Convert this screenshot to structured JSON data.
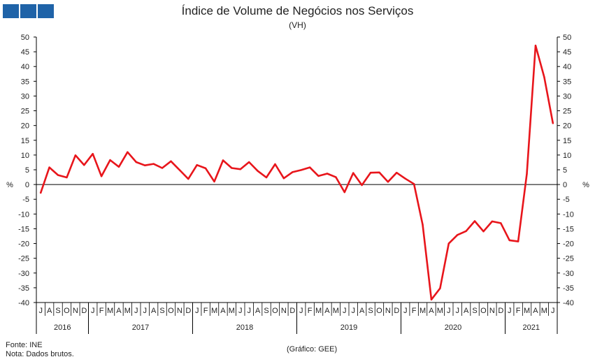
{
  "header": {
    "title": "Índice de Volume de Negócios nos Serviços",
    "subtitle": "(VH)"
  },
  "footer": {
    "source": "Fonte: INE",
    "note": "Nota: Dados brutos.",
    "credit": "(Gráfico: GEE)"
  },
  "colors": {
    "line": "#e8151b",
    "logo": "#1f63a8",
    "axis": "#000000"
  },
  "chart_data": {
    "type": "line",
    "title": "Índice de Volume de Negócios nos Serviços",
    "subtitle": "(VH)",
    "ylabel_left": "%",
    "ylabel_right": "%",
    "ylim": [
      -40,
      50
    ],
    "yticks": [
      50,
      45,
      40,
      35,
      30,
      25,
      20,
      15,
      10,
      5,
      0,
      -5,
      -10,
      -15,
      -20,
      -25,
      -30,
      -35,
      -40
    ],
    "grid": false,
    "x": [
      "2016-07",
      "2016-08",
      "2016-09",
      "2016-10",
      "2016-11",
      "2016-12",
      "2017-01",
      "2017-02",
      "2017-03",
      "2017-04",
      "2017-05",
      "2017-06",
      "2017-07",
      "2017-08",
      "2017-09",
      "2017-10",
      "2017-11",
      "2017-12",
      "2018-01",
      "2018-02",
      "2018-03",
      "2018-04",
      "2018-05",
      "2018-06",
      "2018-07",
      "2018-08",
      "2018-09",
      "2018-10",
      "2018-11",
      "2018-12",
      "2019-01",
      "2019-02",
      "2019-03",
      "2019-04",
      "2019-05",
      "2019-06",
      "2019-07",
      "2019-08",
      "2019-09",
      "2019-10",
      "2019-11",
      "2019-12",
      "2020-01",
      "2020-02",
      "2020-03",
      "2020-04",
      "2020-05",
      "2020-06",
      "2020-07",
      "2020-08",
      "2020-09",
      "2020-10",
      "2020-11",
      "2020-12",
      "2021-01",
      "2021-02",
      "2021-03",
      "2021-04",
      "2021-05",
      "2021-06"
    ],
    "month_labels": [
      "J",
      "A",
      "S",
      "O",
      "N",
      "D",
      "J",
      "F",
      "M",
      "A",
      "M",
      "J",
      "J",
      "A",
      "S",
      "O",
      "N",
      "D",
      "J",
      "F",
      "M",
      "A",
      "M",
      "J",
      "J",
      "A",
      "S",
      "O",
      "N",
      "D",
      "J",
      "F",
      "M",
      "A",
      "M",
      "J",
      "J",
      "A",
      "S",
      "O",
      "N",
      "D",
      "J",
      "F",
      "M",
      "A",
      "M",
      "J",
      "J",
      "A",
      "S",
      "O",
      "N",
      "D",
      "J",
      "F",
      "M",
      "A",
      "M",
      "J"
    ],
    "years": [
      {
        "label": "2016",
        "months": 6
      },
      {
        "label": "2017",
        "months": 12
      },
      {
        "label": "2018",
        "months": 12
      },
      {
        "label": "2019",
        "months": 12
      },
      {
        "label": "2020",
        "months": 12
      },
      {
        "label": "2021",
        "months": 6
      }
    ],
    "series": [
      {
        "values": [
          -2.8,
          5.8,
          3.2,
          2.4,
          9.9,
          6.6,
          10.4,
          2.8,
          8.3,
          6.0,
          11.0,
          7.6,
          6.5,
          7.0,
          5.6,
          7.9,
          4.9,
          1.9,
          6.6,
          5.5,
          1.0,
          8.2,
          5.6,
          5.2,
          7.6,
          4.6,
          2.4,
          6.9,
          2.1,
          4.2,
          4.9,
          5.8,
          2.9,
          3.7,
          2.5,
          -2.6,
          3.9,
          -0.2,
          4.0,
          4.1,
          0.9,
          4.0,
          2.0,
          0.2,
          -13.6,
          -39.0,
          -35.2,
          -20.0,
          -17.1,
          -15.8,
          -12.4,
          -15.9,
          -12.5,
          -13.1,
          -18.9,
          -19.3,
          3.6,
          47.1,
          36.4,
          20.8
        ]
      }
    ]
  }
}
